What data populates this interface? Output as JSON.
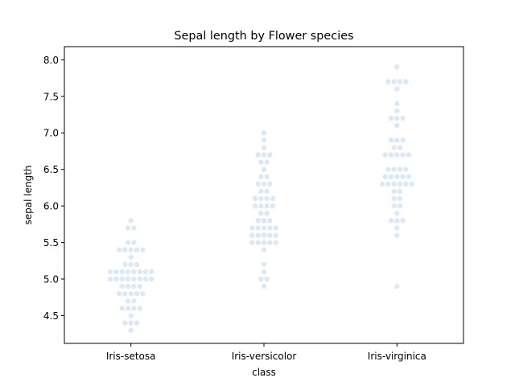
{
  "chart_data": {
    "type": "scatter",
    "subtype": "swarm",
    "title": "Sepal length by Flower species",
    "xlabel": "class",
    "ylabel": "sepal length",
    "categories": [
      "Iris-setosa",
      "Iris-versicolor",
      "Iris-virginica"
    ],
    "ylim": [
      4.12,
      8.18
    ],
    "yticks": [
      "4.5",
      "5.0",
      "5.5",
      "6.0",
      "6.5",
      "7.0",
      "7.5",
      "8.0"
    ],
    "grid": false,
    "point_color": "#dbe9f6",
    "series": [
      {
        "category": "Iris-setosa",
        "values": [
          5.1,
          4.9,
          4.7,
          4.6,
          5.0,
          5.4,
          4.6,
          5.0,
          4.4,
          4.9,
          5.4,
          4.8,
          4.8,
          4.3,
          5.8,
          5.7,
          5.4,
          5.1,
          5.7,
          5.1,
          5.4,
          5.1,
          4.6,
          5.1,
          4.8,
          5.0,
          5.0,
          5.2,
          5.2,
          4.7,
          4.8,
          5.4,
          5.2,
          5.5,
          4.9,
          5.0,
          5.5,
          4.9,
          4.4,
          5.1,
          5.0,
          4.5,
          4.4,
          5.0,
          5.1,
          4.8,
          5.1,
          4.6,
          5.3,
          5.0
        ]
      },
      {
        "category": "Iris-versicolor",
        "values": [
          7.0,
          6.4,
          6.9,
          5.5,
          6.5,
          5.7,
          6.3,
          4.9,
          6.6,
          5.2,
          5.0,
          5.9,
          6.0,
          6.1,
          5.6,
          6.7,
          5.6,
          5.8,
          6.2,
          5.6,
          5.9,
          6.1,
          6.3,
          6.1,
          6.4,
          6.6,
          6.8,
          6.7,
          6.0,
          5.7,
          5.5,
          5.5,
          5.8,
          6.0,
          5.4,
          6.0,
          6.7,
          6.3,
          5.6,
          5.5,
          5.5,
          6.1,
          5.8,
          5.0,
          5.6,
          5.7,
          5.7,
          6.2,
          5.1,
          5.7
        ]
      },
      {
        "category": "Iris-virginica",
        "values": [
          6.3,
          5.8,
          7.1,
          6.3,
          6.5,
          7.6,
          4.9,
          7.3,
          6.7,
          7.2,
          6.5,
          6.4,
          6.8,
          5.7,
          5.8,
          6.4,
          6.5,
          7.7,
          7.7,
          6.0,
          6.9,
          5.6,
          7.7,
          6.3,
          6.7,
          7.2,
          6.2,
          6.1,
          6.4,
          7.2,
          7.4,
          7.9,
          6.4,
          6.3,
          6.1,
          7.7,
          6.3,
          6.4,
          6.0,
          6.9,
          6.7,
          6.9,
          5.8,
          6.8,
          6.7,
          6.7,
          6.3,
          6.5,
          6.2,
          5.9
        ]
      }
    ]
  }
}
